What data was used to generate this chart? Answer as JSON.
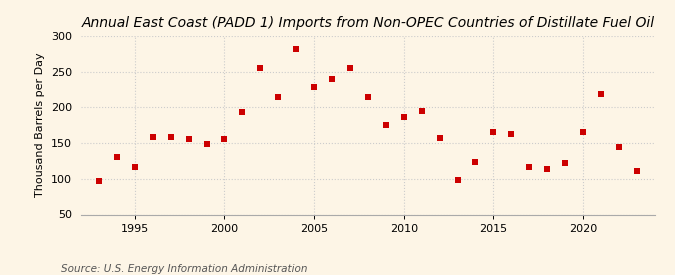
{
  "title": "Annual East Coast (PADD 1) Imports from Non-OPEC Countries of Distillate Fuel Oil",
  "ylabel": "Thousand Barrels per Day",
  "source": "Source: U.S. Energy Information Administration",
  "background_color": "#fdf5e6",
  "marker_color": "#cc0000",
  "years": [
    1993,
    1994,
    1995,
    1996,
    1997,
    1998,
    1999,
    2000,
    2001,
    2002,
    2003,
    2004,
    2005,
    2006,
    2007,
    2008,
    2009,
    2010,
    2011,
    2012,
    2013,
    2014,
    2015,
    2016,
    2017,
    2018,
    2019,
    2020,
    2021,
    2022,
    2023
  ],
  "values": [
    97,
    131,
    117,
    159,
    158,
    155,
    149,
    155,
    193,
    255,
    215,
    282,
    228,
    239,
    255,
    215,
    175,
    186,
    195,
    157,
    98,
    124,
    165,
    162,
    117,
    114,
    122,
    165,
    218,
    145,
    111
  ],
  "ylim": [
    50,
    300
  ],
  "xlim": [
    1992,
    2024
  ],
  "yticks": [
    50,
    100,
    150,
    200,
    250,
    300
  ],
  "xticks": [
    1995,
    2000,
    2005,
    2010,
    2015,
    2020
  ],
  "grid_color": "#cccccc",
  "title_fontsize": 10,
  "label_fontsize": 8,
  "tick_fontsize": 8,
  "source_fontsize": 7.5,
  "marker_size": 15
}
